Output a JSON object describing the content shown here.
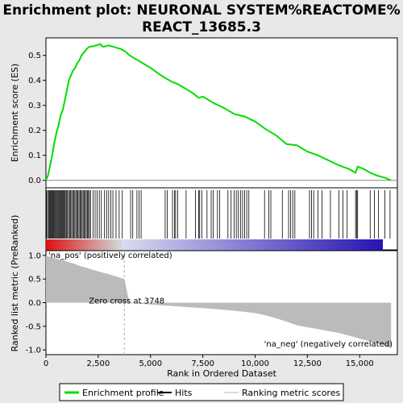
{
  "title_line1": "Enrichment plot: NEURONAL SYSTEM%REACTOME%",
  "title_line2": "REACT_13685.3",
  "colors": {
    "enrichment_line": "#00dd00",
    "hits": "#000000",
    "metric_fill": "#bbbbbb",
    "pos_label": "#cc0000",
    "neg_label": "#0000cc",
    "zero_cross_line": "#aaaaaa"
  },
  "chart_data": [
    {
      "type": "line",
      "name": "enrichment-profile",
      "ylabel": "Enrichment score (ES)",
      "xlim": [
        0,
        16800
      ],
      "ylim": [
        -0.03,
        0.57
      ],
      "yticks": [
        0.0,
        0.1,
        0.2,
        0.3,
        0.4,
        0.5
      ],
      "ytick_labels": [
        "0.0",
        "0.1",
        "0.2",
        "0.3",
        "0.4",
        "0.5"
      ],
      "grid": false,
      "x": [
        0,
        100,
        200,
        300,
        400,
        500,
        600,
        700,
        800,
        900,
        1000,
        1100,
        1200,
        1300,
        1400,
        1500,
        1600,
        1700,
        1800,
        1900,
        2000,
        2100,
        2200,
        2400,
        2600,
        2700,
        2800,
        3000,
        3200,
        3400,
        3600,
        3800,
        4000,
        4300,
        4600,
        5000,
        5500,
        6000,
        6300,
        6500,
        7000,
        7300,
        7500,
        8000,
        8500,
        9000,
        9500,
        10000,
        10500,
        11000,
        11500,
        12000,
        12500,
        13000,
        13500,
        14000,
        14500,
        14800,
        14900,
        15200,
        15500,
        15800,
        16000,
        16200,
        16500
      ],
      "y": [
        0.0,
        0.02,
        0.06,
        0.1,
        0.15,
        0.19,
        0.22,
        0.26,
        0.28,
        0.32,
        0.36,
        0.4,
        0.42,
        0.44,
        0.45,
        0.47,
        0.48,
        0.5,
        0.51,
        0.52,
        0.53,
        0.535,
        0.535,
        0.54,
        0.545,
        0.535,
        0.535,
        0.54,
        0.535,
        0.53,
        0.525,
        0.515,
        0.5,
        0.485,
        0.47,
        0.45,
        0.42,
        0.395,
        0.385,
        0.375,
        0.35,
        0.33,
        0.335,
        0.31,
        0.29,
        0.265,
        0.255,
        0.235,
        0.205,
        0.18,
        0.145,
        0.14,
        0.115,
        0.1,
        0.08,
        0.06,
        0.045,
        0.03,
        0.055,
        0.045,
        0.03,
        0.02,
        0.015,
        0.01,
        0.0
      ]
    },
    {
      "type": "table",
      "name": "hits",
      "hit_positions": [
        30,
        80,
        130,
        170,
        210,
        250,
        290,
        330,
        370,
        410,
        450,
        490,
        530,
        570,
        610,
        650,
        690,
        730,
        770,
        810,
        850,
        890,
        930,
        980,
        1030,
        1080,
        1130,
        1180,
        1230,
        1280,
        1330,
        1380,
        1430,
        1480,
        1530,
        1580,
        1630,
        1680,
        1730,
        1780,
        1830,
        1880,
        1930,
        1980,
        2030,
        2080,
        2130,
        2250,
        2350,
        2450,
        2550,
        2650,
        2800,
        2900,
        3000,
        3100,
        3200,
        3350,
        3500,
        3650,
        4050,
        4150,
        4350,
        4450,
        4550,
        5700,
        5800,
        6050,
        6150,
        6200,
        6300,
        6700,
        7150,
        7300,
        7350,
        7450,
        7700,
        7900,
        8000,
        8200,
        8300,
        8700,
        8850,
        9000,
        9100,
        9200,
        9300,
        9400,
        9500,
        9600,
        9700,
        10450,
        10650,
        10750,
        11300,
        11600,
        11700,
        11800,
        11900,
        12600,
        12700,
        12800,
        13000,
        13200,
        13600,
        14000,
        14200,
        14400,
        14800,
        14850,
        14900,
        15500,
        15700,
        15900,
        16200,
        16450
      ]
    },
    {
      "type": "area",
      "name": "ranked-list-metric",
      "xlabel": "Rank in Ordered Dataset",
      "ylabel": "Ranked list metric (PreRanked)",
      "xlim": [
        0,
        16800
      ],
      "ylim": [
        -1.1,
        1.1
      ],
      "xticks": [
        0,
        2500,
        5000,
        7500,
        10000,
        12500,
        15000
      ],
      "xtick_labels": [
        "0",
        "2,500",
        "5,000",
        "7,500",
        "10,000",
        "12,500",
        "15,000"
      ],
      "yticks": [
        -1.0,
        -0.5,
        0.0,
        0.5,
        1.0
      ],
      "ytick_labels": [
        "-1.0",
        "-0.5",
        "0.0",
        "0.5",
        "1.0"
      ],
      "x": [
        0,
        100,
        300,
        500,
        800,
        1000,
        1300,
        1600,
        2000,
        2500,
        3000,
        3400,
        3748,
        4000,
        5000,
        6000,
        7000,
        8000,
        9000,
        10000,
        10500,
        11000,
        11500,
        12000,
        12500,
        13000,
        13500,
        14000,
        14500,
        15000,
        15500,
        16000,
        16500
      ],
      "y": [
        1.0,
        0.98,
        0.95,
        0.93,
        0.9,
        0.87,
        0.83,
        0.78,
        0.73,
        0.66,
        0.6,
        0.55,
        0.5,
        -0.01,
        -0.04,
        -0.07,
        -0.1,
        -0.13,
        -0.17,
        -0.22,
        -0.27,
        -0.33,
        -0.4,
        -0.48,
        -0.52,
        -0.56,
        -0.6,
        -0.64,
        -0.7,
        -0.76,
        -0.82,
        -0.88,
        -0.96
      ],
      "zero_cross_rank": 3748,
      "zero_cross_label": "Zero cross at 3748",
      "pos_label": "'na_pos' (positively correlated)",
      "neg_label": "'na_neg' (negatively correlated)"
    }
  ],
  "legend": {
    "items": [
      {
        "label": "Enrichment profile",
        "color": "#00dd00"
      },
      {
        "label": "Hits",
        "color": "#000000"
      },
      {
        "label": "Ranking metric scores",
        "color": "#bbbbbb"
      }
    ]
  }
}
